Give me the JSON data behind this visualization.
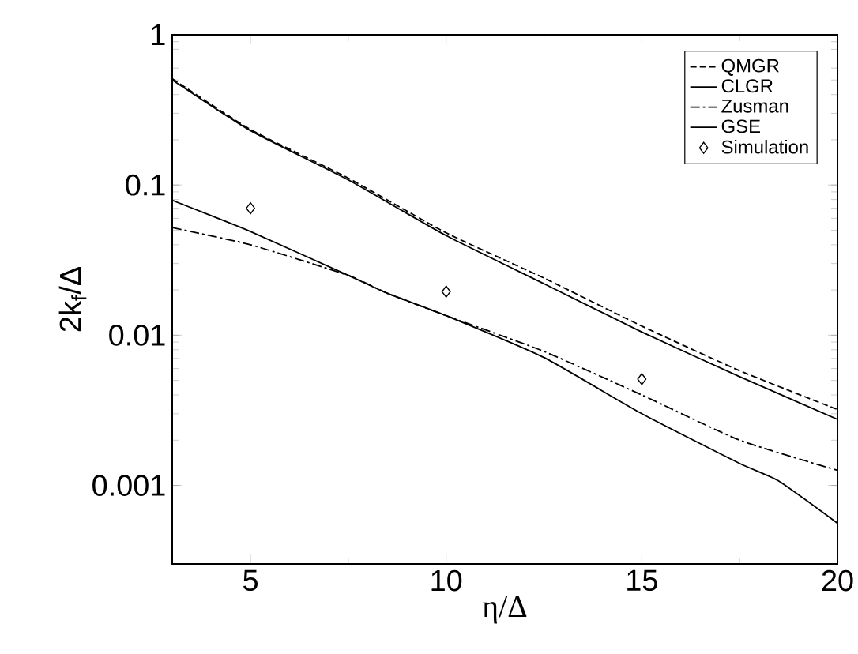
{
  "chart_data": {
    "type": "line",
    "xlabel": "η/Δ",
    "ylabel": "2k$_{f}$/Δ",
    "log": "y",
    "xlim": [
      3,
      20
    ],
    "ylim": [
      0.0003,
      1
    ],
    "xticks": [
      5,
      10,
      15,
      20
    ],
    "yticks": [
      0.001,
      0.01,
      0.1,
      1
    ],
    "legend": "top right",
    "grid": false,
    "series": [
      {
        "name": "QMGR",
        "color": "#000000",
        "line_style": "dashed",
        "marker": "none",
        "x": [
          3,
          5,
          7.5,
          10,
          12.5,
          15,
          17.5,
          20
        ],
        "values": [
          0.51,
          0.234,
          0.111,
          0.048,
          0.024,
          0.0115,
          0.0058,
          0.0032
        ]
      },
      {
        "name": "CLGR",
        "color": "#000000",
        "line_style": "solid",
        "marker": "none",
        "x": [
          3,
          5,
          7.5,
          10,
          12.5,
          15,
          17.5,
          20
        ],
        "values": [
          0.5,
          0.23,
          0.108,
          0.046,
          0.022,
          0.0105,
          0.0053,
          0.00275
        ]
      },
      {
        "name": "Zusman",
        "color": "#000000",
        "line_style": "dashdot",
        "marker": "none",
        "x": [
          3,
          5,
          7.5,
          8.5,
          10,
          12.5,
          15,
          17.5,
          20
        ],
        "values": [
          0.052,
          0.04,
          0.025,
          0.019,
          0.0135,
          0.0078,
          0.004,
          0.002,
          0.00126
        ]
      },
      {
        "name": "GSE",
        "color": "#000000",
        "line_style": "solid",
        "marker": "none",
        "x": [
          3,
          5,
          7.5,
          8.5,
          10,
          12.5,
          15,
          17.5,
          18.5,
          20
        ],
        "values": [
          0.079,
          0.049,
          0.025,
          0.019,
          0.0135,
          0.0071,
          0.003,
          0.0014,
          0.00107,
          0.00056
        ]
      },
      {
        "name": "Simulation",
        "type": "scatter",
        "color": "#000000",
        "marker": "diamond",
        "x": [
          5,
          10,
          15
        ],
        "values": [
          0.07,
          0.0195,
          0.0051
        ]
      }
    ]
  }
}
